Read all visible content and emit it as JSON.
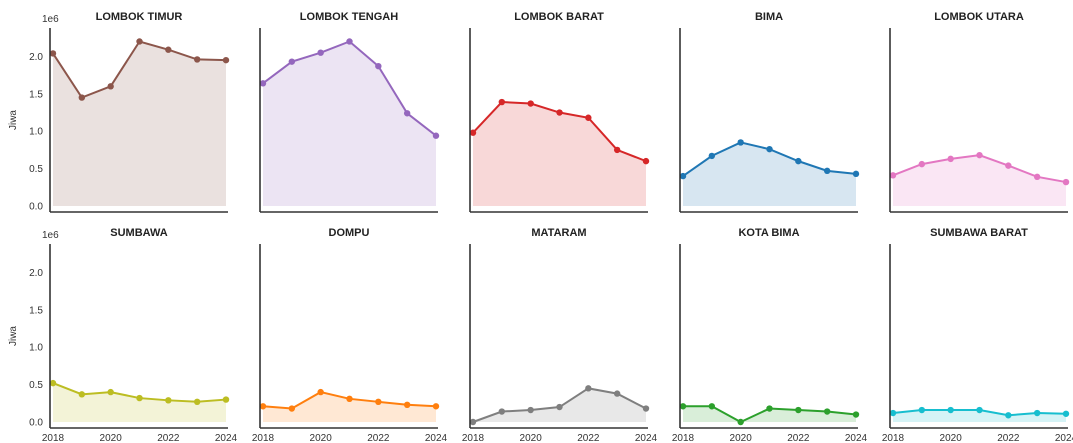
{
  "chart_data": {
    "type": "line",
    "subtype": "small-multiples-area",
    "layout": {
      "rows": 2,
      "cols": 5
    },
    "shared_axes": true,
    "ylabel": "Jiwa",
    "y_offset_label": "1e6",
    "ylim": [
      0,
      2.3
    ],
    "yticks": [
      "0.0",
      "0.5",
      "1.0",
      "1.5",
      "2.0"
    ],
    "yticks_values": [
      0,
      0.5,
      1.0,
      1.5,
      2.0
    ],
    "x": [
      2018,
      2019,
      2020,
      2021,
      2022,
      2023,
      2024
    ],
    "xticks": [
      "2018",
      "2020",
      "2022",
      "2024"
    ],
    "xticks_values": [
      2018,
      2020,
      2022,
      2024
    ],
    "grid": false,
    "panels": [
      {
        "name": "LOMBOK TIMUR",
        "color": "#8c564b",
        "values": [
          2.04,
          1.45,
          1.6,
          2.2,
          2.09,
          1.96,
          1.95
        ]
      },
      {
        "name": "LOMBOK TENGAH",
        "color": "#9467bd",
        "values": [
          1.64,
          1.93,
          2.05,
          2.2,
          1.87,
          1.24,
          0.94
        ]
      },
      {
        "name": "LOMBOK BARAT",
        "color": "#d62728",
        "values": [
          0.98,
          1.39,
          1.37,
          1.25,
          1.18,
          0.75,
          0.6
        ]
      },
      {
        "name": "BIMA",
        "color": "#1f77b4",
        "values": [
          0.4,
          0.67,
          0.85,
          0.76,
          0.6,
          0.47,
          0.43
        ]
      },
      {
        "name": "LOMBOK UTARA",
        "color": "#e377c2",
        "values": [
          0.41,
          0.56,
          0.63,
          0.68,
          0.54,
          0.39,
          0.32
        ]
      },
      {
        "name": "SUMBAWA",
        "color": "#bcbd22",
        "values": [
          0.52,
          0.37,
          0.4,
          0.32,
          0.29,
          0.27,
          0.3
        ]
      },
      {
        "name": "DOMPU",
        "color": "#ff7f0e",
        "values": [
          0.21,
          0.18,
          0.4,
          0.31,
          0.27,
          0.23,
          0.21
        ]
      },
      {
        "name": "MATARAM",
        "color": "#7f7f7f",
        "values": [
          0.0,
          0.14,
          0.16,
          0.2,
          0.45,
          0.38,
          0.18
        ]
      },
      {
        "name": "KOTA BIMA",
        "color": "#2ca02c",
        "values": [
          0.21,
          0.21,
          0.0,
          0.18,
          0.16,
          0.14,
          0.1
        ]
      },
      {
        "name": "SUMBAWA BARAT",
        "color": "#17becf",
        "values": [
          0.12,
          0.16,
          0.16,
          0.16,
          0.09,
          0.12,
          0.11
        ]
      }
    ]
  }
}
